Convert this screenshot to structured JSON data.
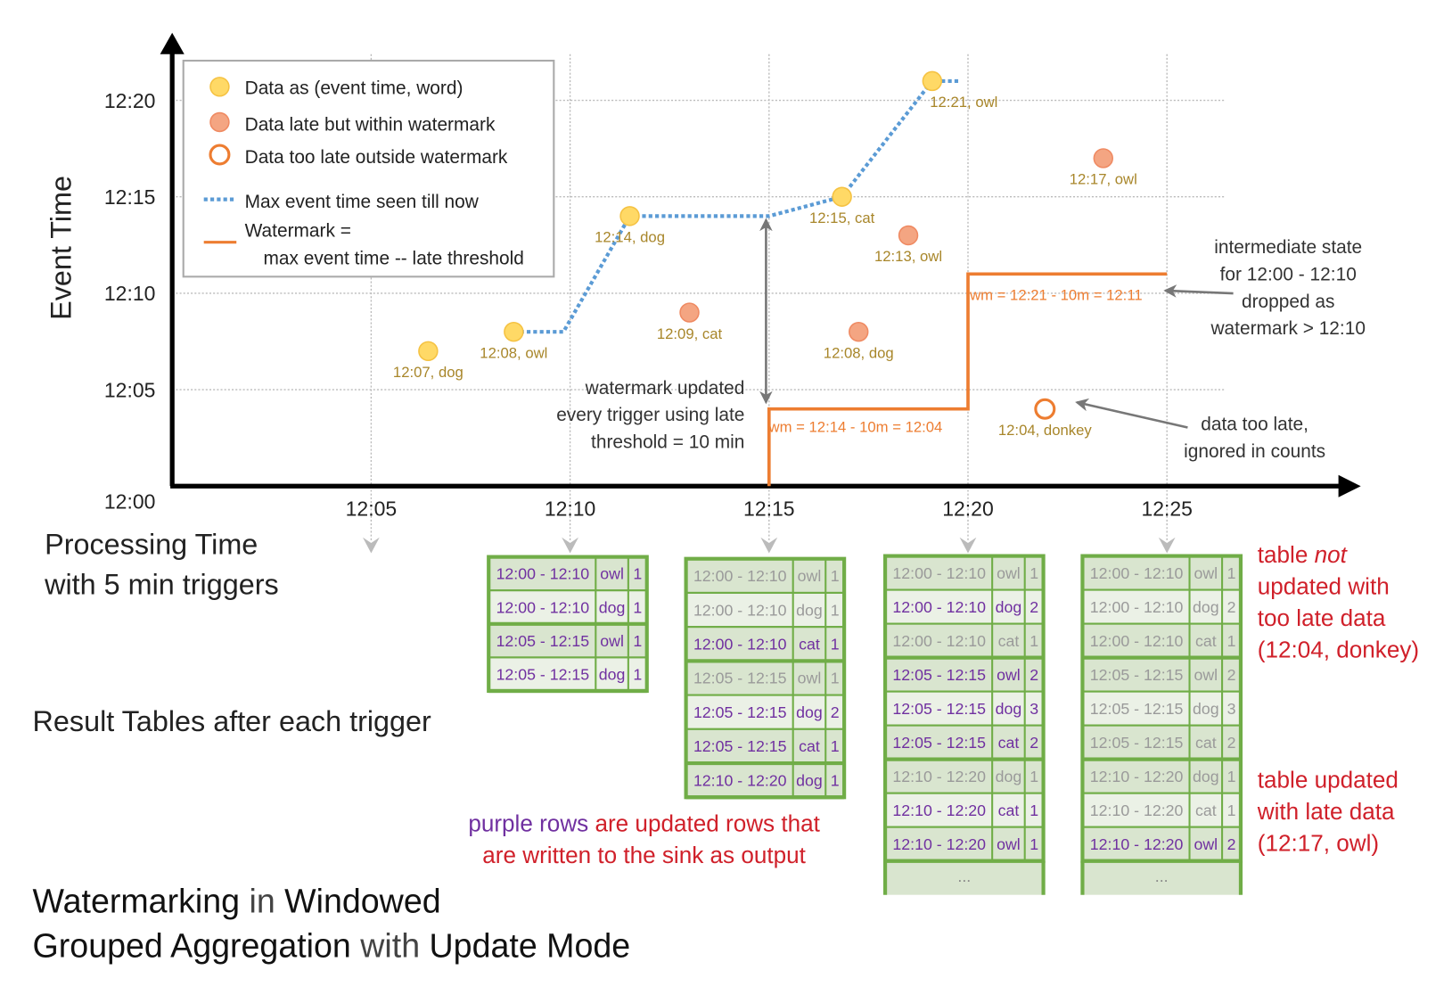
{
  "chart_data": {
    "type": "diagram",
    "y_axis": {
      "label": "Event Time",
      "ticks": [
        "12:00",
        "12:05",
        "12:10",
        "12:15",
        "12:20"
      ]
    },
    "x_axis": {
      "label_lines": [
        "Processing Time",
        "with 5 min triggers"
      ],
      "ticks": [
        "12:05",
        "12:10",
        "12:15",
        "12:20",
        "12:25"
      ]
    },
    "grid": true,
    "legend": {
      "items": [
        {
          "kind": "on-time",
          "label": "Data as (event time, word)"
        },
        {
          "kind": "late",
          "label": "Data late but within watermark"
        },
        {
          "kind": "too-late",
          "label": "Data too late outside watermark"
        },
        {
          "kind": "max-line",
          "label": "Max event time seen till now"
        },
        {
          "kind": "watermark-line",
          "label": "Watermark =",
          "label2": "max event time -- late threshold"
        }
      ]
    },
    "points": [
      {
        "label": "12:07, dog",
        "event_time": "12:07",
        "processing_time": "12:06:26",
        "kind": "on-time"
      },
      {
        "label": "12:08, owl",
        "event_time": "12:08",
        "processing_time": "12:08:35",
        "kind": "on-time"
      },
      {
        "label": "12:14, dog",
        "event_time": "12:14",
        "processing_time": "12:11:30",
        "kind": "on-time"
      },
      {
        "label": "12:09, cat",
        "event_time": "12:09",
        "processing_time": "12:13:00",
        "kind": "late"
      },
      {
        "label": "12:15, cat",
        "event_time": "12:15",
        "processing_time": "12:16:50",
        "kind": "on-time"
      },
      {
        "label": "12:08, dog",
        "event_time": "12:08",
        "processing_time": "12:17:15",
        "kind": "late"
      },
      {
        "label": "12:13, owl",
        "event_time": "12:13",
        "processing_time": "12:18:30",
        "kind": "late"
      },
      {
        "label": "12:21, owl",
        "event_time": "12:21",
        "processing_time": "12:19:06",
        "kind": "on-time"
      },
      {
        "label": "12:04, donkey",
        "event_time": "12:04",
        "processing_time": "12:21:56",
        "kind": "too-late"
      },
      {
        "label": "12:17, owl",
        "event_time": "12:17",
        "processing_time": "12:23:24",
        "kind": "late"
      }
    ],
    "max_event_time_line": [
      [
        "12:08:35",
        "12:08"
      ],
      [
        "12:09:50",
        "12:08"
      ],
      [
        "12:11:30",
        "12:14"
      ],
      [
        "12:15:00",
        "12:14"
      ],
      [
        "12:16:50",
        "12:15"
      ],
      [
        "12:19:06",
        "12:21"
      ],
      [
        "12:19:48",
        "12:21"
      ]
    ],
    "watermark_line": [
      [
        "12:15:00",
        "12:00"
      ],
      [
        "12:15:00",
        "12:04"
      ],
      [
        "12:20:00",
        "12:04"
      ],
      [
        "12:20:00",
        "12:11"
      ],
      [
        "12:25:00",
        "12:11"
      ]
    ],
    "watermark_labels": [
      "wm = 12:14 - 10m = 12:04",
      "wm = 12:21 - 10m = 12:11"
    ],
    "colors": {
      "on_time": "#ffd966",
      "late": "#f4a582",
      "too_late": "#ed7d31",
      "max_line": "#5b9bd5",
      "watermark": "#ed7d31",
      "label": "#a8862a"
    }
  },
  "annotations": {
    "watermark_updated": [
      "watermark updated",
      "every trigger using late",
      "threshold = 10 min"
    ],
    "intermediate_state": [
      "intermediate state",
      "for 12:00 - 12:10",
      "dropped as",
      "watermark > 12:10"
    ],
    "data_too_late": [
      "data too late,",
      "ignored in counts"
    ]
  },
  "result_tables_label": "Result Tables after each trigger",
  "result_tables": [
    {
      "groups": [
        [
          [
            "12:00 - 12:10",
            "owl",
            "1",
            true
          ],
          [
            "12:00 - 12:10",
            "dog",
            "1",
            true
          ]
        ],
        [
          [
            "12:05 - 12:15",
            "owl",
            "1",
            true
          ],
          [
            "12:05 - 12:15",
            "dog",
            "1",
            true
          ]
        ]
      ],
      "ellipsis": false
    },
    {
      "groups": [
        [
          [
            "12:00 - 12:10",
            "owl",
            "1",
            false
          ],
          [
            "12:00 - 12:10",
            "dog",
            "1",
            false
          ],
          [
            "12:00 - 12:10",
            "cat",
            "1",
            true
          ]
        ],
        [
          [
            "12:05 - 12:15",
            "owl",
            "1",
            false
          ],
          [
            "12:05 - 12:15",
            "dog",
            "2",
            true
          ],
          [
            "12:05 - 12:15",
            "cat",
            "1",
            true
          ]
        ],
        [
          [
            "12:10 - 12:20",
            "dog",
            "1",
            true
          ]
        ]
      ],
      "ellipsis": false
    },
    {
      "groups": [
        [
          [
            "12:00 - 12:10",
            "owl",
            "1",
            false
          ],
          [
            "12:00 - 12:10",
            "dog",
            "2",
            true
          ],
          [
            "12:00 - 12:10",
            "cat",
            "1",
            false
          ]
        ],
        [
          [
            "12:05 - 12:15",
            "owl",
            "2",
            true
          ],
          [
            "12:05 - 12:15",
            "dog",
            "3",
            true
          ],
          [
            "12:05 - 12:15",
            "cat",
            "2",
            true
          ]
        ],
        [
          [
            "12:10 - 12:20",
            "dog",
            "1",
            false
          ],
          [
            "12:10 - 12:20",
            "cat",
            "1",
            true
          ],
          [
            "12:10 - 12:20",
            "owl",
            "1",
            true
          ]
        ]
      ],
      "ellipsis": true
    },
    {
      "groups": [
        [
          [
            "12:00 - 12:10",
            "owl",
            "1",
            false
          ],
          [
            "12:00 - 12:10",
            "dog",
            "2",
            false
          ],
          [
            "12:00 - 12:10",
            "cat",
            "1",
            false
          ]
        ],
        [
          [
            "12:05 - 12:15",
            "owl",
            "2",
            false
          ],
          [
            "12:05 - 12:15",
            "dog",
            "3",
            false
          ],
          [
            "12:05 - 12:15",
            "cat",
            "2",
            false
          ]
        ],
        [
          [
            "12:10 - 12:20",
            "dog",
            "1",
            false
          ],
          [
            "12:10 - 12:20",
            "cat",
            "1",
            false
          ],
          [
            "12:10 - 12:20",
            "owl",
            "2",
            true
          ]
        ]
      ],
      "ellipsis": true
    }
  ],
  "ellipsis_text": "...",
  "notes": {
    "purple_rows": "purple rows",
    "purple_rest": " are updated rows that",
    "purple_line2": "are written to the sink as output",
    "not_updated": {
      "line1a": "table ",
      "line1b": "not",
      "line2": "updated with",
      "line3": "too late data",
      "line4": "(12:04, donkey)"
    },
    "updated": [
      "table updated",
      "with late data",
      "(12:17, owl)"
    ]
  },
  "title": {
    "line1": [
      {
        "t": "Watermarking",
        "strong": true
      },
      {
        "t": " in ",
        "strong": false
      },
      {
        "t": "Windowed",
        "strong": true
      }
    ],
    "line2": [
      {
        "t": "Grouped Aggregation",
        "strong": true
      },
      {
        "t": " with ",
        "strong": false
      },
      {
        "t": "Update Mode",
        "strong": true
      }
    ]
  },
  "row_colors": {
    "dark": "#d9e5cf",
    "light": "#ebf1e6",
    "border": "#70ad47",
    "updated_text": "#7030a0",
    "stale_text": "#9a9a9a"
  }
}
